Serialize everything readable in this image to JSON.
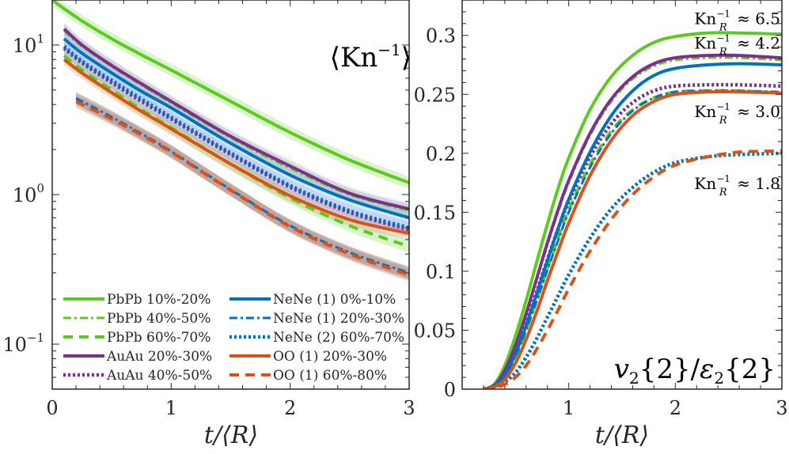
{
  "colors": {
    "green": "#5ccb1f",
    "purple": "#7e2f8e",
    "blue": "#0072bd",
    "orange": "#d95319",
    "axis": "#262626"
  },
  "chart_data": [
    {
      "type": "line",
      "panel": "left",
      "title": "⟨Kn⁻¹⟩",
      "title_parts": {
        "open": "⟨",
        "base": "Kn",
        "sup": "−1",
        "close": "⟩"
      },
      "xlabel": "t/⟨R⟩",
      "ylabel": "",
      "yscale": "log",
      "xlim": [
        0,
        3
      ],
      "ylim": [
        0.05,
        20
      ],
      "xticks": [
        0,
        1,
        2,
        3
      ],
      "xtick_labels": [
        "0",
        "1",
        "2",
        "3"
      ],
      "yticks": [
        0.1,
        1,
        10
      ],
      "ytick_labels": [
        {
          "base": "10",
          "exp": "−1"
        },
        {
          "base": "10",
          "exp": "0"
        },
        {
          "base": "10",
          "exp": "1"
        }
      ],
      "grid": false,
      "legend_placement": "bottom-left",
      "series": [
        {
          "name": "PbPb 10%-20%",
          "color": "green",
          "style": "solid",
          "band": true,
          "x": [
            0.0,
            0.1,
            0.25,
            0.5,
            0.75,
            1.0,
            1.5,
            2.0,
            2.5,
            3.0
          ],
          "y": [
            20,
            17.5,
            14.5,
            11,
            8.6,
            6.8,
            4.2,
            2.6,
            1.7,
            1.2
          ]
        },
        {
          "name": "PbPb 40%-50%",
          "color": "green",
          "style": "dashdot",
          "band": true,
          "x": [
            0.1,
            0.25,
            0.5,
            0.75,
            1.0,
            1.5,
            2.0,
            2.5,
            3.0
          ],
          "y": [
            12.5,
            9.8,
            7.2,
            5.4,
            4.1,
            2.4,
            1.5,
            1.0,
            0.78
          ]
        },
        {
          "name": "PbPb 60%-70%",
          "color": "green",
          "style": "dashed",
          "band": true,
          "x": [
            0.1,
            0.25,
            0.5,
            0.75,
            1.0,
            1.5,
            2.0,
            2.5,
            3.0
          ],
          "y": [
            8.5,
            6.8,
            5.0,
            3.7,
            2.8,
            1.6,
            0.95,
            0.62,
            0.45
          ]
        },
        {
          "name": "AuAu 20%-30%",
          "color": "purple",
          "style": "solid",
          "band": true,
          "x": [
            0.1,
            0.25,
            0.5,
            0.75,
            1.0,
            1.5,
            2.0,
            2.5,
            3.0
          ],
          "y": [
            12.8,
            10.0,
            7.3,
            5.5,
            4.2,
            2.45,
            1.55,
            1.02,
            0.8
          ]
        },
        {
          "name": "AuAu 40%-50%",
          "color": "purple",
          "style": "dotted",
          "band": true,
          "x": [
            0.1,
            0.25,
            0.5,
            0.75,
            1.0,
            1.5,
            2.0,
            2.5,
            3.0
          ],
          "y": [
            9.5,
            7.6,
            5.6,
            4.2,
            3.2,
            1.85,
            1.12,
            0.76,
            0.58
          ]
        },
        {
          "name": "NeNe (1) 0%-10%",
          "color": "blue",
          "style": "solid",
          "band": true,
          "x": [
            0.1,
            0.25,
            0.5,
            0.75,
            1.0,
            1.5,
            2.0,
            2.5,
            3.0
          ],
          "y": [
            11,
            8.8,
            6.5,
            4.9,
            3.8,
            2.2,
            1.35,
            0.92,
            0.7
          ]
        },
        {
          "name": "NeNe (1) 20%-30%",
          "color": "blue",
          "style": "dashdot",
          "band": true,
          "x": [
            0.2,
            0.5,
            0.75,
            1.0,
            1.5,
            2.0,
            2.5,
            3.0
          ],
          "y": [
            4.4,
            3.3,
            2.55,
            1.95,
            1.08,
            0.62,
            0.41,
            0.3
          ]
        },
        {
          "name": "NeNe (2) 60%-70%",
          "color": "blue",
          "style": "dotted",
          "band": true,
          "x": [
            0.1,
            0.25,
            0.5,
            0.75,
            1.0,
            1.5,
            2.0,
            2.5,
            3.0
          ],
          "y": [
            9.8,
            7.8,
            5.8,
            4.35,
            3.3,
            1.9,
            1.15,
            0.78,
            0.6
          ]
        },
        {
          "name": "OO (1) 20%-30%",
          "color": "orange",
          "style": "solid",
          "band": true,
          "x": [
            0.1,
            0.25,
            0.5,
            0.75,
            1.0,
            1.5,
            2.0,
            2.5,
            3.0
          ],
          "y": [
            8.0,
            6.5,
            4.8,
            3.6,
            2.75,
            1.6,
            0.98,
            0.68,
            0.55
          ]
        },
        {
          "name": "OO (1) 60%-80%",
          "color": "orange",
          "style": "dashed",
          "band": true,
          "x": [
            0.2,
            0.5,
            0.75,
            1.0,
            1.5,
            2.0,
            2.5,
            3.0
          ],
          "y": [
            4.2,
            3.2,
            2.5,
            1.92,
            1.07,
            0.61,
            0.4,
            0.29
          ]
        }
      ]
    },
    {
      "type": "line",
      "panel": "right",
      "title": "v₂{2}/ε₂{2}",
      "title_parts": {
        "v": "v",
        "sub1": "2",
        "braces1": "{2}",
        "slash": "/",
        "eps": "ε",
        "sub2": "2",
        "braces2": "{2}"
      },
      "xlabel": "t/⟨R⟩",
      "ylabel": "",
      "xlim": [
        0,
        3
      ],
      "ylim": [
        0,
        0.33
      ],
      "xticks": [
        1,
        2,
        3
      ],
      "xtick_labels": [
        "1",
        "2",
        "3"
      ],
      "yticks": [
        0,
        0.05,
        0.1,
        0.15,
        0.2,
        0.25,
        0.3
      ],
      "ytick_labels": [
        "0",
        "0.05",
        "0.1",
        "0.15",
        "0.2",
        "0.25",
        "0.3"
      ],
      "grid": false,
      "annotations": [
        {
          "text": "Kn_R^{-1} ≈ 6.5",
          "base": "Kn",
          "sub": "R",
          "sup": "−1",
          "rest": "≈ 6.5",
          "at_y": 0.315
        },
        {
          "text": "Kn_R^{-1} ≈ 4.2",
          "base": "Kn",
          "sub": "R",
          "sup": "−1",
          "rest": "≈ 4.2",
          "at_y": 0.294
        },
        {
          "text": "Kn_R^{-1} ≈ 3.0",
          "base": "Kn",
          "sub": "R",
          "sup": "−1",
          "rest": "≈ 3.0",
          "at_y": 0.236
        },
        {
          "text": "Kn_R^{-1} ≈ 1.8",
          "base": "Kn",
          "sub": "R",
          "sup": "−1",
          "rest": "≈ 1.8",
          "at_y": 0.175
        }
      ],
      "series": [
        {
          "name": "PbPb 10%-20%",
          "color": "green",
          "style": "solid",
          "x": [
            0.2,
            0.3,
            0.4,
            0.5,
            0.6,
            0.7,
            0.8,
            0.9,
            1.0,
            1.2,
            1.4,
            1.6,
            1.8,
            2.0,
            2.3,
            2.6,
            3.0
          ],
          "y": [
            0.0,
            0.004,
            0.02,
            0.045,
            0.075,
            0.108,
            0.14,
            0.17,
            0.196,
            0.237,
            0.265,
            0.283,
            0.294,
            0.299,
            0.302,
            0.302,
            0.301
          ]
        },
        {
          "name": "PbPb 40%-50%",
          "color": "green",
          "style": "dashdot",
          "x": [
            0.2,
            0.3,
            0.4,
            0.5,
            0.6,
            0.7,
            0.8,
            0.9,
            1.0,
            1.2,
            1.4,
            1.6,
            1.8,
            2.0,
            2.3,
            2.6,
            3.0
          ],
          "y": [
            0.0,
            0.003,
            0.015,
            0.036,
            0.063,
            0.093,
            0.122,
            0.15,
            0.175,
            0.215,
            0.244,
            0.263,
            0.274,
            0.279,
            0.281,
            0.281,
            0.279
          ]
        },
        {
          "name": "PbPb 60%-70%",
          "color": "green",
          "style": "dashed",
          "x": [
            0.2,
            0.3,
            0.4,
            0.5,
            0.6,
            0.7,
            0.8,
            0.9,
            1.0,
            1.2,
            1.4,
            1.6,
            1.8,
            2.0,
            2.3,
            2.6,
            3.0
          ],
          "y": [
            0.0,
            0.002,
            0.01,
            0.027,
            0.05,
            0.076,
            0.102,
            0.128,
            0.152,
            0.19,
            0.219,
            0.237,
            0.247,
            0.252,
            0.253,
            0.253,
            0.251
          ]
        },
        {
          "name": "AuAu 20%-30%",
          "color": "purple",
          "style": "solid",
          "x": [
            0.2,
            0.3,
            0.4,
            0.5,
            0.6,
            0.7,
            0.8,
            0.9,
            1.0,
            1.2,
            1.4,
            1.6,
            1.8,
            2.0,
            2.3,
            2.6,
            3.0
          ],
          "y": [
            0.0,
            0.003,
            0.016,
            0.037,
            0.064,
            0.094,
            0.124,
            0.152,
            0.177,
            0.217,
            0.246,
            0.265,
            0.276,
            0.281,
            0.283,
            0.283,
            0.281
          ]
        },
        {
          "name": "AuAu 40%-50%",
          "color": "purple",
          "style": "dotted",
          "x": [
            0.2,
            0.3,
            0.4,
            0.5,
            0.6,
            0.7,
            0.8,
            0.9,
            1.0,
            1.2,
            1.4,
            1.6,
            1.8,
            2.0,
            2.3,
            2.6,
            3.0
          ],
          "y": [
            0.0,
            0.003,
            0.013,
            0.032,
            0.056,
            0.083,
            0.11,
            0.136,
            0.159,
            0.197,
            0.225,
            0.243,
            0.253,
            0.257,
            0.258,
            0.258,
            0.257
          ]
        },
        {
          "name": "NeNe (1) 0%-10%",
          "color": "blue",
          "style": "solid",
          "x": [
            0.2,
            0.3,
            0.4,
            0.5,
            0.6,
            0.7,
            0.8,
            0.9,
            1.0,
            1.2,
            1.4,
            1.6,
            1.8,
            2.0,
            2.3,
            2.6,
            3.0
          ],
          "y": [
            0.0,
            0.003,
            0.012,
            0.03,
            0.054,
            0.081,
            0.109,
            0.136,
            0.161,
            0.201,
            0.232,
            0.253,
            0.266,
            0.272,
            0.275,
            0.276,
            0.275
          ]
        },
        {
          "name": "NeNe (1) 20%-30%",
          "color": "blue",
          "style": "dashdot",
          "x": [
            0.2,
            0.3,
            0.4,
            0.5,
            0.6,
            0.7,
            0.8,
            0.9,
            1.0,
            1.2,
            1.4,
            1.6,
            1.8,
            2.0,
            2.3,
            2.6,
            3.0
          ],
          "y": [
            0.0,
            0.003,
            0.011,
            0.028,
            0.05,
            0.075,
            0.101,
            0.126,
            0.15,
            0.188,
            0.217,
            0.236,
            0.247,
            0.252,
            0.253,
            0.253,
            0.252
          ]
        },
        {
          "name": "NeNe (2) 60%-70%",
          "color": "blue",
          "style": "dotted",
          "x": [
            0.2,
            0.3,
            0.4,
            0.5,
            0.6,
            0.7,
            0.8,
            0.9,
            1.0,
            1.2,
            1.4,
            1.6,
            1.8,
            2.0,
            2.3,
            2.6,
            3.0
          ],
          "y": [
            0.0,
            0.002,
            0.006,
            0.014,
            0.027,
            0.043,
            0.061,
            0.079,
            0.097,
            0.128,
            0.153,
            0.171,
            0.184,
            0.192,
            0.197,
            0.199,
            0.2
          ]
        },
        {
          "name": "OO (1) 20%-30%",
          "color": "orange",
          "style": "solid",
          "x": [
            0.2,
            0.3,
            0.4,
            0.5,
            0.6,
            0.7,
            0.8,
            0.9,
            1.0,
            1.2,
            1.4,
            1.6,
            1.8,
            2.0,
            2.3,
            2.6,
            3.0
          ],
          "y": [
            0.0,
            0.002,
            0.008,
            0.022,
            0.042,
            0.066,
            0.092,
            0.117,
            0.141,
            0.181,
            0.211,
            0.232,
            0.244,
            0.25,
            0.252,
            0.252,
            0.251
          ]
        },
        {
          "name": "OO (1) 60%-80%",
          "color": "orange",
          "style": "dashed",
          "x": [
            0.2,
            0.3,
            0.4,
            0.5,
            0.6,
            0.7,
            0.8,
            0.9,
            1.0,
            1.2,
            1.4,
            1.6,
            1.8,
            2.0,
            2.3,
            2.6,
            3.0
          ],
          "y": [
            0.0,
            0.001,
            0.004,
            0.01,
            0.02,
            0.034,
            0.05,
            0.067,
            0.085,
            0.117,
            0.144,
            0.165,
            0.18,
            0.19,
            0.197,
            0.201,
            0.202
          ]
        }
      ]
    }
  ],
  "legend": {
    "columns": [
      [
        "PbPb 10%-20%",
        "PbPb 40%-50%",
        "PbPb 60%-70%",
        "AuAu 20%-30%",
        "AuAu 40%-50%"
      ],
      [
        "NeNe (1) 0%-10%",
        "NeNe (1) 20%-30%",
        "NeNe (2) 60%-70%",
        "OO (1) 20%-30%",
        "OO (1) 60%-80%"
      ]
    ]
  }
}
